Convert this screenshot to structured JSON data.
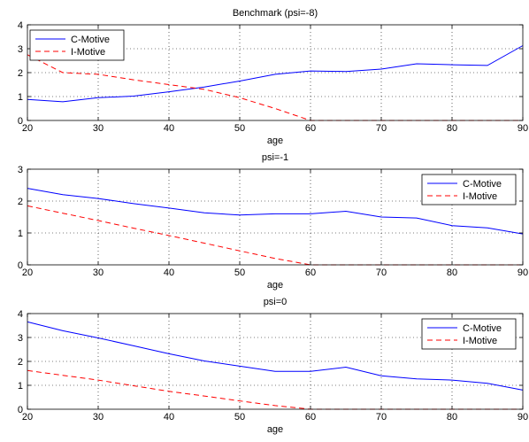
{
  "chart_data": [
    {
      "type": "line",
      "title": "Benchmark (psi=-8)",
      "xlabel": "age",
      "ylabel": "",
      "xlim": [
        20,
        90
      ],
      "ylim": [
        0,
        4
      ],
      "xticks": [
        20,
        30,
        40,
        50,
        60,
        70,
        80,
        90
      ],
      "yticks": [
        0,
        1,
        2,
        3,
        4
      ],
      "grid": true,
      "legend": "top-left",
      "x": [
        20,
        25,
        30,
        35,
        40,
        45,
        50,
        55,
        60,
        65,
        70,
        75,
        80,
        85,
        90
      ],
      "series": [
        {
          "name": "C-Motive",
          "color": "#0000ff",
          "dash": "solid",
          "values": [
            0.88,
            0.78,
            0.95,
            1.02,
            1.2,
            1.4,
            1.65,
            1.93,
            2.07,
            2.05,
            2.15,
            2.37,
            2.33,
            2.3,
            3.13
          ]
        },
        {
          "name": "I-Motive",
          "color": "#ff0000",
          "dash": "dashed",
          "values": [
            2.75,
            2.0,
            1.93,
            1.7,
            1.5,
            1.3,
            0.95,
            0.5,
            0.0,
            0.0,
            0.0,
            0.0,
            0.0,
            0.0,
            0.0
          ]
        }
      ]
    },
    {
      "type": "line",
      "title": "psi=-1",
      "xlabel": "age",
      "ylabel": "",
      "xlim": [
        20,
        90
      ],
      "ylim": [
        0,
        3
      ],
      "xticks": [
        20,
        30,
        40,
        50,
        60,
        70,
        80,
        90
      ],
      "yticks": [
        0,
        1,
        2,
        3
      ],
      "grid": true,
      "legend": "top-right",
      "x": [
        20,
        25,
        30,
        35,
        40,
        45,
        50,
        55,
        60,
        65,
        70,
        75,
        80,
        85,
        90
      ],
      "series": [
        {
          "name": "C-Motive",
          "color": "#0000ff",
          "dash": "solid",
          "values": [
            2.4,
            2.2,
            2.08,
            1.92,
            1.78,
            1.63,
            1.56,
            1.6,
            1.6,
            1.68,
            1.5,
            1.47,
            1.23,
            1.16,
            0.97
          ]
        },
        {
          "name": "I-Motive",
          "color": "#ff0000",
          "dash": "dashed",
          "values": [
            1.85,
            1.62,
            1.39,
            1.15,
            0.92,
            0.68,
            0.44,
            0.2,
            0.0,
            0.0,
            0.0,
            0.0,
            0.0,
            0.0,
            0.0
          ]
        }
      ]
    },
    {
      "type": "line",
      "title": "psi=0",
      "xlabel": "age",
      "ylabel": "",
      "xlim": [
        20,
        90
      ],
      "ylim": [
        0,
        4
      ],
      "xticks": [
        20,
        30,
        40,
        50,
        60,
        70,
        80,
        90
      ],
      "yticks": [
        0,
        1,
        2,
        3,
        4
      ],
      "grid": true,
      "legend": "top-right",
      "x": [
        20,
        25,
        30,
        35,
        40,
        45,
        50,
        55,
        60,
        65,
        70,
        75,
        80,
        85,
        90
      ],
      "series": [
        {
          "name": "C-Motive",
          "color": "#0000ff",
          "dash": "solid",
          "values": [
            3.65,
            3.28,
            2.98,
            2.65,
            2.32,
            2.02,
            1.8,
            1.58,
            1.58,
            1.76,
            1.4,
            1.27,
            1.22,
            1.08,
            0.8
          ]
        },
        {
          "name": "I-Motive",
          "color": "#ff0000",
          "dash": "dashed",
          "values": [
            1.62,
            1.42,
            1.22,
            0.98,
            0.75,
            0.55,
            0.35,
            0.15,
            0.0,
            0.0,
            0.0,
            0.0,
            0.0,
            0.0,
            0.0
          ]
        }
      ]
    }
  ]
}
